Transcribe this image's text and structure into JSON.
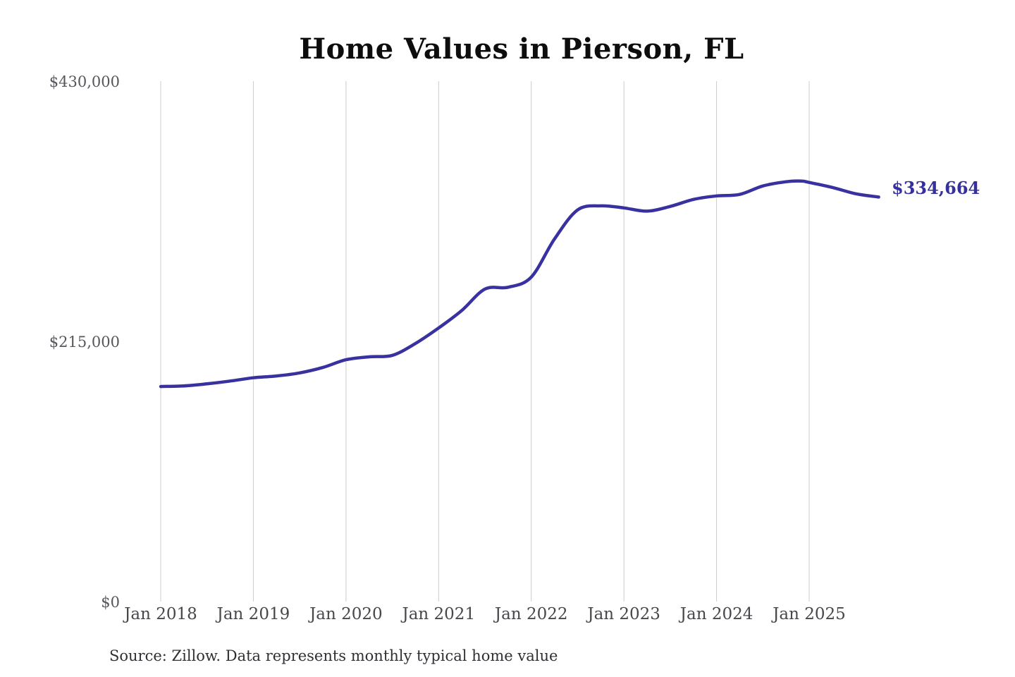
{
  "title": "Home Values in Pierson, FL",
  "end_value_label": "$334,664",
  "source_note": "Source: Zillow. Data represents monthly typical home value",
  "colors": {
    "line": "#38319f",
    "end_label": "#35309d",
    "gridline": "#cccccc",
    "title": "#0d0d0d",
    "y_tick": "#56565c",
    "x_tick": "#48484c",
    "source": "#303034",
    "background": "#ffffff"
  },
  "chart_data": {
    "type": "line",
    "title": "Home Values in Pierson, FL",
    "xlabel": "",
    "ylabel": "",
    "ylim": [
      0,
      430000
    ],
    "grid": "vertical-only",
    "legend": "none",
    "x_ticks": [
      "Jan 2018",
      "Jan 2019",
      "Jan 2020",
      "Jan 2021",
      "Jan 2022",
      "Jan 2023",
      "Jan 2024",
      "Jan 2025"
    ],
    "y_ticks": [
      {
        "value": 0,
        "label": "$0"
      },
      {
        "value": 215000,
        "label": "$215,000"
      },
      {
        "value": 430000,
        "label": "$430,000"
      }
    ],
    "annotation": {
      "text": "$334,664",
      "at": "2025-10"
    },
    "series": [
      {
        "name": "Monthly typical home value",
        "points": [
          [
            "2018-01",
            178300
          ],
          [
            "2018-04",
            178800
          ],
          [
            "2018-07",
            180500
          ],
          [
            "2018-10",
            182800
          ],
          [
            "2019-01",
            185500
          ],
          [
            "2019-04",
            187000
          ],
          [
            "2019-07",
            189500
          ],
          [
            "2019-10",
            194000
          ],
          [
            "2020-01",
            200400
          ],
          [
            "2020-04",
            202800
          ],
          [
            "2020-07",
            204000
          ],
          [
            "2020-10",
            213800
          ],
          [
            "2021-01",
            226600
          ],
          [
            "2021-04",
            241000
          ],
          [
            "2021-07",
            258700
          ],
          [
            "2021-10",
            260200
          ],
          [
            "2022-01",
            268600
          ],
          [
            "2022-04",
            300000
          ],
          [
            "2022-07",
            324000
          ],
          [
            "2022-10",
            327400
          ],
          [
            "2023-01",
            325700
          ],
          [
            "2023-04",
            323000
          ],
          [
            "2023-07",
            326900
          ],
          [
            "2023-10",
            332700
          ],
          [
            "2024-01",
            335600
          ],
          [
            "2024-04",
            336800
          ],
          [
            "2024-07",
            343800
          ],
          [
            "2024-10",
            347300
          ],
          [
            "2024-12",
            347900
          ],
          [
            "2025-01",
            346700
          ],
          [
            "2025-04",
            342600
          ],
          [
            "2025-07",
            337400
          ],
          [
            "2025-10",
            334664
          ]
        ]
      }
    ]
  }
}
